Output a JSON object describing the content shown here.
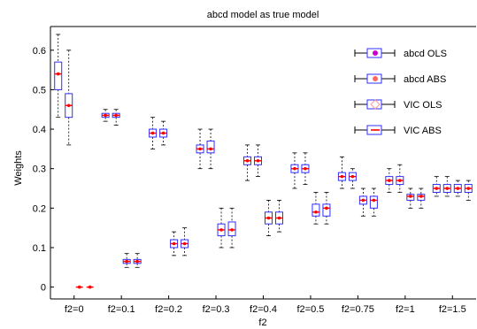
{
  "chart_data": {
    "type": "boxplot",
    "title": "abcd model as true model",
    "xlabel": "f2",
    "ylabel": "Weights",
    "ylim": [
      -0.03,
      0.66
    ],
    "yticks": [
      0,
      0.1,
      0.2,
      0.3,
      0.4,
      0.5,
      0.6
    ],
    "ytick_labels": [
      "0",
      "0.1",
      "0.2",
      "0.3",
      "0.4",
      "0.5",
      "0.6"
    ],
    "categories": [
      "f2=0",
      "f2=0.1",
      "f2=0.2",
      "f2=0.3",
      "f2=0.4",
      "f2=0.5",
      "f2=0.75",
      "f2=1",
      "f2=1.5"
    ],
    "grid": false,
    "legend_position": "top-right",
    "colors": {
      "box": "#2f2fff",
      "median": "#ff0000",
      "whisker": "#000000",
      "legend_abcd_ols_marker": "#cc00cc",
      "legend_abcd_abs_marker": "#ff6666",
      "legend_vic_ols_marker": "#ff9999",
      "legend_vic_abs_marker": "#ff3333"
    },
    "series": [
      {
        "name": "abcd OLS",
        "stats": [
          {
            "min": 0.43,
            "q1": 0.5,
            "median": 0.54,
            "q3": 0.57,
            "max": 0.64
          },
          {
            "min": 0.42,
            "q1": 0.43,
            "median": 0.435,
            "q3": 0.44,
            "max": 0.45
          },
          {
            "min": 0.35,
            "q1": 0.38,
            "median": 0.39,
            "q3": 0.4,
            "max": 0.43
          },
          {
            "min": 0.3,
            "q1": 0.34,
            "median": 0.35,
            "q3": 0.36,
            "max": 0.4
          },
          {
            "min": 0.27,
            "q1": 0.31,
            "median": 0.32,
            "q3": 0.33,
            "max": 0.36
          },
          {
            "min": 0.25,
            "q1": 0.29,
            "median": 0.3,
            "q3": 0.31,
            "max": 0.34
          },
          {
            "min": 0.25,
            "q1": 0.27,
            "median": 0.28,
            "q3": 0.29,
            "max": 0.33
          },
          {
            "min": 0.24,
            "q1": 0.26,
            "median": 0.27,
            "q3": 0.28,
            "max": 0.3
          },
          {
            "min": 0.23,
            "q1": 0.24,
            "median": 0.25,
            "q3": 0.26,
            "max": 0.28
          }
        ]
      },
      {
        "name": "abcd ABS",
        "stats": [
          {
            "min": 0.36,
            "q1": 0.43,
            "median": 0.46,
            "q3": 0.49,
            "max": 0.6
          },
          {
            "min": 0.41,
            "q1": 0.43,
            "median": 0.435,
            "q3": 0.44,
            "max": 0.45
          },
          {
            "min": 0.36,
            "q1": 0.38,
            "median": 0.39,
            "q3": 0.4,
            "max": 0.42
          },
          {
            "min": 0.3,
            "q1": 0.34,
            "median": 0.35,
            "q3": 0.37,
            "max": 0.4
          },
          {
            "min": 0.28,
            "q1": 0.31,
            "median": 0.32,
            "q3": 0.33,
            "max": 0.36
          },
          {
            "min": 0.26,
            "q1": 0.29,
            "median": 0.3,
            "q3": 0.31,
            "max": 0.34
          },
          {
            "min": 0.25,
            "q1": 0.27,
            "median": 0.28,
            "q3": 0.29,
            "max": 0.3
          },
          {
            "min": 0.24,
            "q1": 0.26,
            "median": 0.27,
            "q3": 0.28,
            "max": 0.31
          },
          {
            "min": 0.23,
            "q1": 0.24,
            "median": 0.25,
            "q3": 0.26,
            "max": 0.28
          }
        ]
      },
      {
        "name": "VIC OLS",
        "stats": [
          {
            "min": 0.0,
            "q1": 0.0,
            "median": 0.0,
            "q3": 0.0,
            "max": 0.0
          },
          {
            "min": 0.05,
            "q1": 0.06,
            "median": 0.065,
            "q3": 0.07,
            "max": 0.085
          },
          {
            "min": 0.08,
            "q1": 0.1,
            "median": 0.11,
            "q3": 0.12,
            "max": 0.14
          },
          {
            "min": 0.1,
            "q1": 0.13,
            "median": 0.145,
            "q3": 0.16,
            "max": 0.2
          },
          {
            "min": 0.13,
            "q1": 0.16,
            "median": 0.175,
            "q3": 0.19,
            "max": 0.22
          },
          {
            "min": 0.16,
            "q1": 0.18,
            "median": 0.19,
            "q3": 0.21,
            "max": 0.24
          },
          {
            "min": 0.18,
            "q1": 0.21,
            "median": 0.22,
            "q3": 0.23,
            "max": 0.25
          },
          {
            "min": 0.2,
            "q1": 0.22,
            "median": 0.23,
            "q3": 0.235,
            "max": 0.25
          },
          {
            "min": 0.23,
            "q1": 0.24,
            "median": 0.25,
            "q3": 0.26,
            "max": 0.27
          }
        ]
      },
      {
        "name": "VIC ABS",
        "stats": [
          {
            "min": 0.0,
            "q1": 0.0,
            "median": 0.0,
            "q3": 0.0,
            "max": 0.0
          },
          {
            "min": 0.05,
            "q1": 0.06,
            "median": 0.065,
            "q3": 0.07,
            "max": 0.085
          },
          {
            "min": 0.08,
            "q1": 0.1,
            "median": 0.11,
            "q3": 0.12,
            "max": 0.15
          },
          {
            "min": 0.1,
            "q1": 0.13,
            "median": 0.145,
            "q3": 0.165,
            "max": 0.2
          },
          {
            "min": 0.14,
            "q1": 0.16,
            "median": 0.175,
            "q3": 0.19,
            "max": 0.22
          },
          {
            "min": 0.16,
            "q1": 0.18,
            "median": 0.2,
            "q3": 0.21,
            "max": 0.24
          },
          {
            "min": 0.18,
            "q1": 0.2,
            "median": 0.22,
            "q3": 0.23,
            "max": 0.25
          },
          {
            "min": 0.2,
            "q1": 0.22,
            "median": 0.23,
            "q3": 0.235,
            "max": 0.25
          },
          {
            "min": 0.22,
            "q1": 0.24,
            "median": 0.25,
            "q3": 0.26,
            "max": 0.27
          }
        ]
      }
    ]
  }
}
